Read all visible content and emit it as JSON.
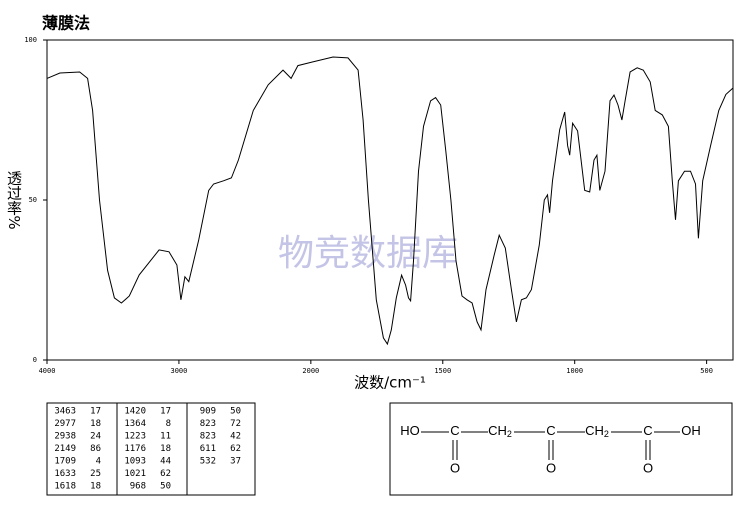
{
  "chart_data": {
    "type": "line",
    "title": "薄膜法",
    "xlabel": "波数/cm⁻¹",
    "ylabel": "透过率%",
    "watermark": "物竞数据库",
    "xlim": [
      4000,
      400
    ],
    "x_break": 2000,
    "ylim": [
      0,
      100
    ],
    "xticks": [
      4000,
      3000,
      2000,
      1500,
      1000,
      500
    ],
    "yticks": [
      0,
      50,
      100
    ],
    "x": [
      4000,
      3902,
      3752,
      3692,
      3654,
      3602,
      3541,
      3489,
      3436,
      3376,
      3301,
      3150,
      3075,
      3015,
      2985,
      2955,
      2925,
      2850,
      2774,
      2737,
      2662,
      2602,
      2549,
      2436,
      2323,
      2211,
      2150,
      2098,
      2000,
      1916,
      1859,
      1821,
      1802,
      1782,
      1752,
      1725,
      1710,
      1695,
      1676,
      1656,
      1641,
      1630,
      1622,
      1611,
      1592,
      1573,
      1546,
      1527,
      1508,
      1489,
      1469,
      1450,
      1427,
      1408,
      1389,
      1370,
      1355,
      1336,
      1305,
      1286,
      1263,
      1240,
      1221,
      1202,
      1183,
      1164,
      1134,
      1115,
      1103,
      1095,
      1084,
      1057,
      1038,
      1027,
      1019,
      1008,
      989,
      962,
      943,
      927,
      916,
      905,
      885,
      866,
      851,
      836,
      821,
      809,
      790,
      763,
      740,
      714,
      695,
      668,
      645,
      630,
      618,
      607,
      584,
      561,
      542,
      531,
      515,
      485,
      454,
      427,
      400
    ],
    "series": [
      {
        "name": "spectrum",
        "color": "#000000",
        "values": [
          88,
          89.7,
          90,
          88,
          78,
          50,
          28,
          19.4,
          17.8,
          20,
          26.6,
          34.4,
          33.8,
          29.7,
          18.8,
          26,
          24.5,
          37.5,
          53,
          55,
          56,
          56.9,
          62.5,
          78,
          86,
          90.6,
          88,
          92,
          93,
          94.7,
          94.4,
          90.6,
          75,
          50,
          18.8,
          6.9,
          5,
          9.4,
          19.4,
          26.5,
          23.4,
          19.4,
          18.5,
          31,
          59,
          73,
          81,
          82,
          79.7,
          65.6,
          50,
          31,
          20,
          18.8,
          17.8,
          11.9,
          9.4,
          22,
          32.8,
          39,
          35,
          22,
          11.9,
          18.8,
          19.4,
          22,
          36,
          50,
          51.6,
          46,
          56,
          72,
          77.5,
          67,
          64,
          74,
          71.6,
          53,
          52.5,
          62.5,
          64,
          53,
          59,
          81,
          82.8,
          79.7,
          75,
          81,
          90,
          91.3,
          90.6,
          86.9,
          78,
          76.6,
          73,
          56,
          43.8,
          56,
          59,
          59,
          55,
          38,
          56,
          67,
          78,
          83,
          85
        ]
      }
    ]
  },
  "peak_table": {
    "columns": [
      [
        [
          3463,
          17
        ],
        [
          2977,
          18
        ],
        [
          2938,
          24
        ],
        [
          2149,
          86
        ],
        [
          1709,
          4
        ],
        [
          1633,
          25
        ],
        [
          1618,
          18
        ]
      ],
      [
        [
          1420,
          17
        ],
        [
          1364,
          8
        ],
        [
          1223,
          11
        ],
        [
          1176,
          18
        ],
        [
          1093,
          44
        ],
        [
          1021,
          62
        ],
        [
          968,
          50
        ]
      ],
      [
        [
          909,
          50
        ],
        [
          823,
          72
        ],
        [
          823,
          42
        ],
        [
          611,
          62
        ],
        [
          532,
          37
        ]
      ]
    ]
  },
  "structure": {
    "chain": [
      {
        "label": "HO"
      },
      {
        "label": "C",
        "below": "O"
      },
      {
        "label": "CH",
        "sub": "2"
      },
      {
        "label": "C",
        "below": "O"
      },
      {
        "label": "CH",
        "sub": "2"
      },
      {
        "label": "C",
        "below": "O"
      },
      {
        "label": "OH"
      }
    ]
  }
}
